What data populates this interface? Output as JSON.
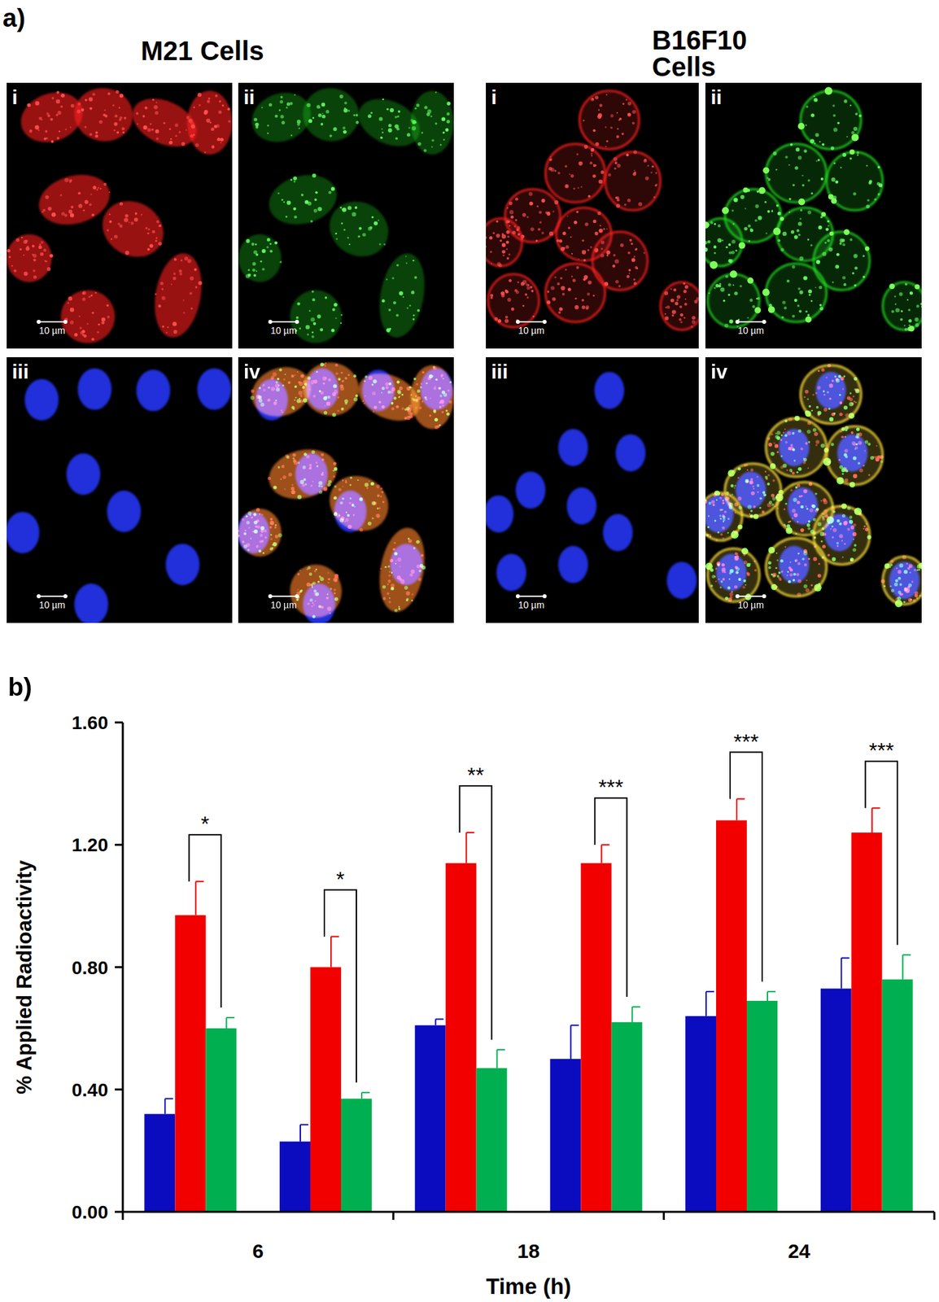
{
  "figure": {
    "label_a": "a)",
    "label_b": "b)",
    "groups": [
      {
        "title": "M21 Cells",
        "panels": [
          "i",
          "ii",
          "iii",
          "iv"
        ],
        "scale_bar": "10 µm"
      },
      {
        "title": "B16F10 Cells",
        "panels": [
          "i",
          "ii",
          "iii",
          "iv"
        ],
        "scale_bar": "10 µm"
      }
    ]
  },
  "chart_data": {
    "type": "bar",
    "x_label": "Time (h)",
    "y_label": "% Applied Radioactivity",
    "categories": [
      "6",
      null,
      "18",
      null,
      "24",
      null
    ],
    "series": [
      {
        "color": "#0b0bbf",
        "values": [
          0.32,
          0.23,
          0.61,
          0.5,
          0.64,
          0.73
        ],
        "errors": [
          0.05,
          0.055,
          0.02,
          0.11,
          0.08,
          0.1
        ]
      },
      {
        "color": "#f20000",
        "values": [
          0.97,
          0.8,
          1.14,
          1.14,
          1.28,
          1.24
        ],
        "errors": [
          0.11,
          0.1,
          0.1,
          0.06,
          0.07,
          0.08
        ]
      },
      {
        "color": "#00b050",
        "values": [
          0.6,
          0.37,
          0.47,
          0.62,
          0.69,
          0.76
        ],
        "errors": [
          0.035,
          0.02,
          0.06,
          0.05,
          0.03,
          0.08
        ]
      }
    ],
    "ylim": [
      0,
      1.6
    ],
    "yticks": [
      {
        "value": 0,
        "label": "0.00"
      },
      {
        "value": 0.4,
        "label": "0.40"
      },
      {
        "value": 0.8,
        "label": "0.80"
      },
      {
        "value": 1.2,
        "label": "1.20"
      },
      {
        "value": 1.6,
        "label": "1.60"
      }
    ],
    "grid": false,
    "annotations": [
      {
        "text": "*",
        "index": 0,
        "series": [
          1,
          2
        ]
      },
      {
        "text": "*",
        "index": 1,
        "series": [
          1,
          2
        ]
      },
      {
        "text": "**",
        "index": 2,
        "series": [
          1,
          2
        ]
      },
      {
        "text": "***",
        "index": 3,
        "series": [
          1,
          2
        ]
      },
      {
        "text": "***",
        "index": 4,
        "series": [
          1,
          2
        ]
      },
      {
        "text": "***",
        "index": 5,
        "series": [
          1,
          2
        ]
      }
    ]
  }
}
